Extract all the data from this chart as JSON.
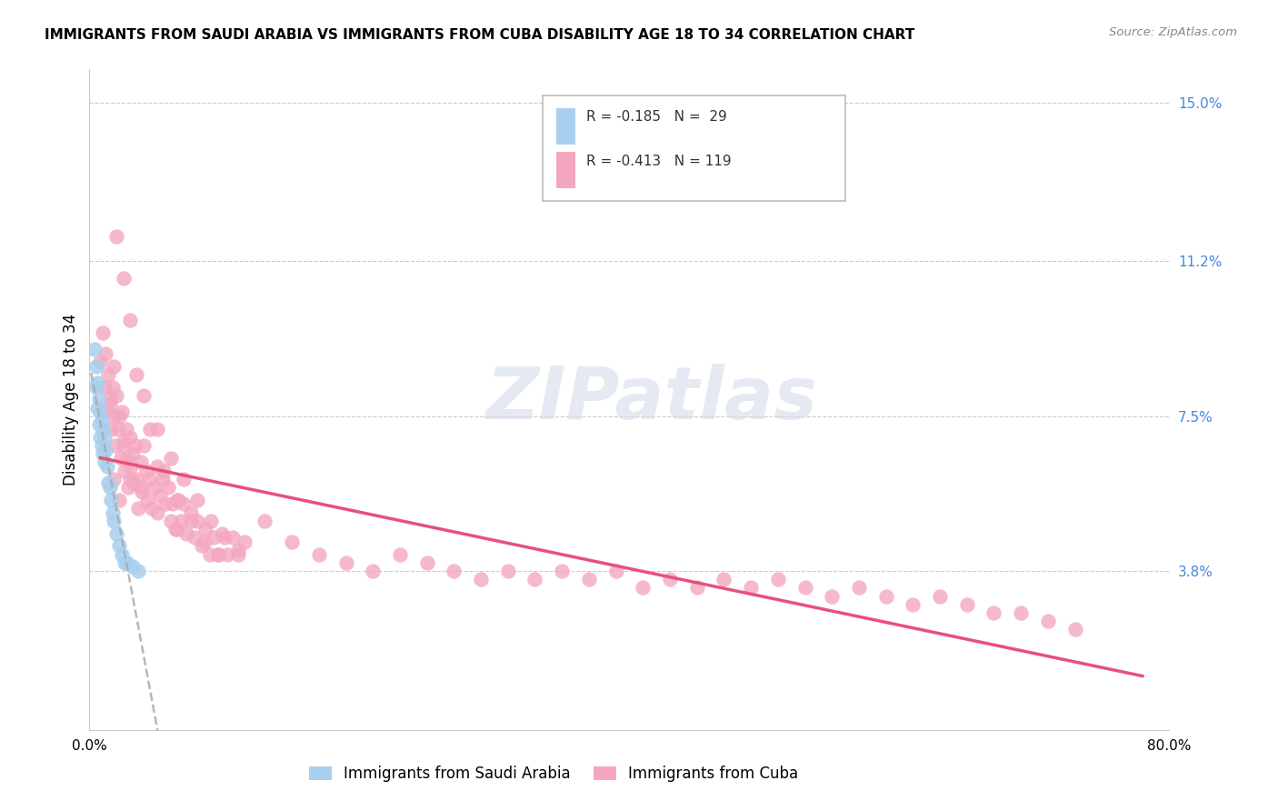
{
  "title": "IMMIGRANTS FROM SAUDI ARABIA VS IMMIGRANTS FROM CUBA DISABILITY AGE 18 TO 34 CORRELATION CHART",
  "source": "Source: ZipAtlas.com",
  "ylabel": "Disability Age 18 to 34",
  "xlim": [
    0.0,
    0.8
  ],
  "ylim": [
    0.0,
    0.158
  ],
  "ytick_positions": [
    0.038,
    0.075,
    0.112,
    0.15
  ],
  "ytick_labels": [
    "3.8%",
    "7.5%",
    "11.2%",
    "15.0%"
  ],
  "xtick_positions": [
    0.0,
    0.1,
    0.2,
    0.3,
    0.4,
    0.5,
    0.6,
    0.7,
    0.8
  ],
  "saudi_color": "#aacfee",
  "cuba_color": "#f4a8c0",
  "saudi_line_color": "#3366bb",
  "cuba_line_color": "#e8507a",
  "saudi_x": [
    0.004,
    0.005,
    0.005,
    0.006,
    0.006,
    0.007,
    0.007,
    0.008,
    0.008,
    0.009,
    0.009,
    0.01,
    0.01,
    0.011,
    0.011,
    0.012,
    0.013,
    0.014,
    0.015,
    0.016,
    0.017,
    0.018,
    0.02,
    0.022,
    0.024,
    0.026,
    0.028,
    0.032,
    0.036
  ],
  "saudi_y": [
    0.091,
    0.087,
    0.082,
    0.083,
    0.077,
    0.079,
    0.073,
    0.076,
    0.07,
    0.074,
    0.068,
    0.072,
    0.066,
    0.07,
    0.064,
    0.067,
    0.063,
    0.059,
    0.058,
    0.055,
    0.052,
    0.05,
    0.047,
    0.044,
    0.042,
    0.04,
    0.04,
    0.039,
    0.038
  ],
  "cuba_x": [
    0.008,
    0.01,
    0.011,
    0.012,
    0.013,
    0.014,
    0.015,
    0.016,
    0.017,
    0.018,
    0.018,
    0.019,
    0.02,
    0.021,
    0.022,
    0.023,
    0.024,
    0.025,
    0.026,
    0.027,
    0.028,
    0.029,
    0.03,
    0.031,
    0.032,
    0.033,
    0.034,
    0.035,
    0.036,
    0.038,
    0.039,
    0.04,
    0.042,
    0.043,
    0.045,
    0.046,
    0.048,
    0.05,
    0.052,
    0.054,
    0.056,
    0.058,
    0.06,
    0.062,
    0.064,
    0.066,
    0.068,
    0.07,
    0.072,
    0.075,
    0.078,
    0.08,
    0.083,
    0.086,
    0.089,
    0.092,
    0.095,
    0.098,
    0.102,
    0.106,
    0.11,
    0.115,
    0.02,
    0.03,
    0.04,
    0.05,
    0.06,
    0.07,
    0.08,
    0.09,
    0.1,
    0.11,
    0.025,
    0.035,
    0.045,
    0.055,
    0.065,
    0.075,
    0.085,
    0.095,
    0.13,
    0.15,
    0.17,
    0.19,
    0.21,
    0.23,
    0.25,
    0.27,
    0.29,
    0.31,
    0.33,
    0.35,
    0.37,
    0.39,
    0.41,
    0.43,
    0.45,
    0.47,
    0.49,
    0.51,
    0.53,
    0.55,
    0.57,
    0.59,
    0.61,
    0.63,
    0.65,
    0.67,
    0.69,
    0.71,
    0.73,
    0.015,
    0.025,
    0.018,
    0.022,
    0.03,
    0.038,
    0.05,
    0.065
  ],
  "cuba_y": [
    0.088,
    0.095,
    0.082,
    0.09,
    0.076,
    0.085,
    0.079,
    0.072,
    0.082,
    0.087,
    0.075,
    0.068,
    0.08,
    0.072,
    0.075,
    0.065,
    0.076,
    0.069,
    0.062,
    0.072,
    0.065,
    0.058,
    0.07,
    0.063,
    0.066,
    0.059,
    0.068,
    0.06,
    0.053,
    0.064,
    0.057,
    0.068,
    0.062,
    0.055,
    0.06,
    0.053,
    0.058,
    0.063,
    0.056,
    0.06,
    0.054,
    0.058,
    0.05,
    0.054,
    0.048,
    0.055,
    0.05,
    0.054,
    0.047,
    0.052,
    0.046,
    0.05,
    0.044,
    0.048,
    0.042,
    0.046,
    0.042,
    0.047,
    0.042,
    0.046,
    0.042,
    0.045,
    0.118,
    0.098,
    0.08,
    0.072,
    0.065,
    0.06,
    0.055,
    0.05,
    0.046,
    0.043,
    0.108,
    0.085,
    0.072,
    0.062,
    0.055,
    0.05,
    0.045,
    0.042,
    0.05,
    0.045,
    0.042,
    0.04,
    0.038,
    0.042,
    0.04,
    0.038,
    0.036,
    0.038,
    0.036,
    0.038,
    0.036,
    0.038,
    0.034,
    0.036,
    0.034,
    0.036,
    0.034,
    0.036,
    0.034,
    0.032,
    0.034,
    0.032,
    0.03,
    0.032,
    0.03,
    0.028,
    0.028,
    0.026,
    0.024,
    0.078,
    0.068,
    0.06,
    0.055,
    0.06,
    0.058,
    0.052,
    0.048
  ]
}
